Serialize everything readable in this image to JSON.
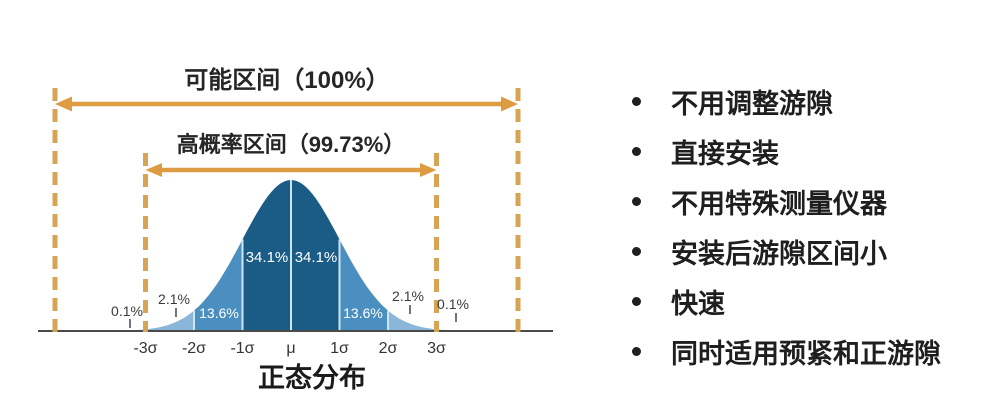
{
  "colors": {
    "background": "#FFFFFF",
    "arrow_orange": "#DE9C42",
    "dash_orange": "#D7A355",
    "bell_core": "#1A5C86",
    "bell_mid": "#4A8FBF",
    "bell_outer": "#8AB6D9",
    "bell_tail": "#A9CBE3",
    "divider": "#CDE6F2",
    "baseline": "#4A4A4A",
    "text_dark": "#262626",
    "pct_text_light": "#FFFFFF",
    "pct_text_dark": "#3A3A3A"
  },
  "chart_data": {
    "type": "area",
    "title": "正态分布",
    "distribution": "normal",
    "x_ticks": [
      "-3σ",
      "-2σ",
      "-1σ",
      "μ",
      "1σ",
      "2σ",
      "3σ"
    ],
    "segments": [
      {
        "range": "beyond -3σ",
        "pct": 0.1,
        "label": "0.1%"
      },
      {
        "range": "-3σ to -2σ",
        "pct": 2.1,
        "label": "2.1%"
      },
      {
        "range": "-2σ to -1σ",
        "pct": 13.6,
        "label": "13.6%"
      },
      {
        "range": "-1σ to μ",
        "pct": 34.1,
        "label": "34.1%"
      },
      {
        "range": "μ to 1σ",
        "pct": 34.1,
        "label": "34.1%"
      },
      {
        "range": "1σ to 2σ",
        "pct": 13.6,
        "label": "13.6%"
      },
      {
        "range": "2σ to 3σ",
        "pct": 2.1,
        "label": "2.1%"
      },
      {
        "range": "beyond 3σ",
        "pct": 0.1,
        "label": "0.1%"
      }
    ],
    "annotations": [
      {
        "label": "可能区间（100%）",
        "span": "entire range"
      },
      {
        "label": "高概率区间（99.73%）",
        "span": "-3σ to 3σ"
      }
    ]
  },
  "features": {
    "items": [
      "不用调整游隙",
      "直接安装",
      "不用特殊测量仪器",
      "安装后游隙区间小",
      "快速",
      "同时适用预紧和正游隙"
    ]
  }
}
